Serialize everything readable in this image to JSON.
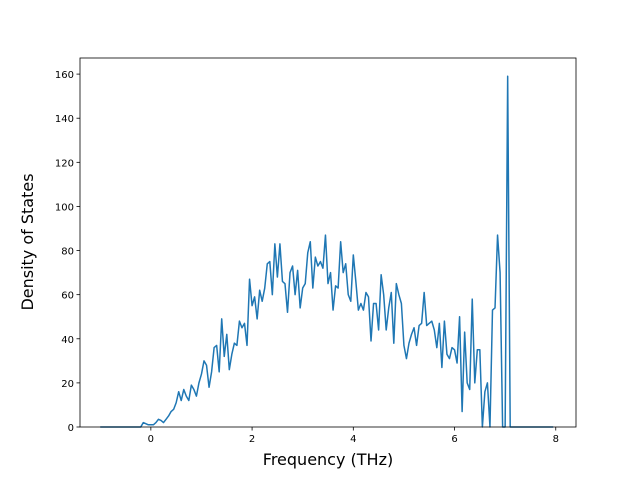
{
  "chart_data": {
    "type": "line",
    "x_label": "Frequency (THz)",
    "y_label": "Density of States",
    "x": [
      -1,
      -0.5,
      -0.2,
      -0.15,
      -0.1,
      -0.05,
      0,
      0.05,
      0.1,
      0.15,
      0.2,
      0.25,
      0.3,
      0.35,
      0.4,
      0.45,
      0.5,
      0.55,
      0.6,
      0.65,
      0.7,
      0.75,
      0.8,
      0.85,
      0.9,
      0.95,
      1.0,
      1.05,
      1.1,
      1.15,
      1.2,
      1.25,
      1.3,
      1.35,
      1.4,
      1.45,
      1.5,
      1.55,
      1.6,
      1.65,
      1.7,
      1.75,
      1.8,
      1.85,
      1.9,
      1.95,
      2.0,
      2.05,
      2.1,
      2.15,
      2.2,
      2.25,
      2.3,
      2.35,
      2.4,
      2.45,
      2.5,
      2.55,
      2.6,
      2.65,
      2.7,
      2.75,
      2.8,
      2.85,
      2.9,
      2.95,
      3.0,
      3.05,
      3.1,
      3.15,
      3.2,
      3.25,
      3.3,
      3.35,
      3.4,
      3.45,
      3.5,
      3.55,
      3.6,
      3.65,
      3.7,
      3.75,
      3.8,
      3.85,
      3.9,
      3.95,
      4.0,
      4.05,
      4.1,
      4.15,
      4.2,
      4.25,
      4.3,
      4.35,
      4.4,
      4.45,
      4.5,
      4.55,
      4.6,
      4.65,
      4.7,
      4.75,
      4.8,
      4.85,
      4.9,
      4.95,
      5.0,
      5.05,
      5.1,
      5.15,
      5.2,
      5.25,
      5.3,
      5.35,
      5.4,
      5.45,
      5.5,
      5.55,
      5.6,
      5.65,
      5.7,
      5.75,
      5.8,
      5.85,
      5.9,
      5.95,
      6.0,
      6.05,
      6.1,
      6.15,
      6.2,
      6.25,
      6.3,
      6.35,
      6.4,
      6.45,
      6.5,
      6.55,
      6.6,
      6.65,
      6.7,
      6.75,
      6.8,
      6.85,
      6.9,
      6.95,
      7.0,
      7.05,
      7.1,
      7.15,
      7.95
    ],
    "series": [
      {
        "color": "#1f77b4",
        "values": [
          0,
          0,
          0,
          2,
          1.5,
          1,
          1,
          1,
          2,
          3.5,
          3,
          2,
          3.5,
          5,
          7,
          8,
          11,
          16,
          12,
          17,
          14,
          12,
          19,
          17,
          14,
          20,
          24,
          30,
          28,
          18,
          25,
          36,
          37,
          25,
          49,
          32,
          42,
          26,
          33,
          38,
          37,
          48,
          45,
          47,
          37,
          67,
          55,
          59,
          49,
          62,
          57,
          63,
          74,
          75,
          60,
          83,
          68,
          83,
          66,
          65,
          52,
          70,
          73,
          60,
          71,
          54,
          63,
          65,
          79,
          84,
          63,
          77,
          73,
          75,
          72,
          87,
          65,
          70,
          53,
          64,
          63,
          84,
          70,
          74,
          60,
          57,
          78,
          66,
          53,
          56,
          53,
          61,
          59,
          39,
          56,
          56,
          44,
          69,
          60,
          44,
          54,
          61,
          38,
          65,
          60,
          56,
          37,
          31,
          38,
          42,
          45,
          37,
          46,
          47,
          61,
          46,
          47,
          48,
          44,
          36,
          47,
          27,
          48,
          33,
          31,
          36,
          35,
          29,
          50,
          7,
          43,
          20,
          17,
          58,
          20,
          35,
          35,
          0,
          16,
          20,
          0,
          53,
          54,
          87,
          70,
          0,
          0,
          159,
          0,
          0,
          0
        ]
      }
    ],
    "xlim": [
      -1.4,
      8.4
    ],
    "ylim": [
      0,
      167.3
    ],
    "xticks": [
      0,
      2,
      4,
      6,
      8
    ],
    "yticks": [
      0,
      20,
      40,
      60,
      80,
      100,
      120,
      140,
      160
    ]
  }
}
